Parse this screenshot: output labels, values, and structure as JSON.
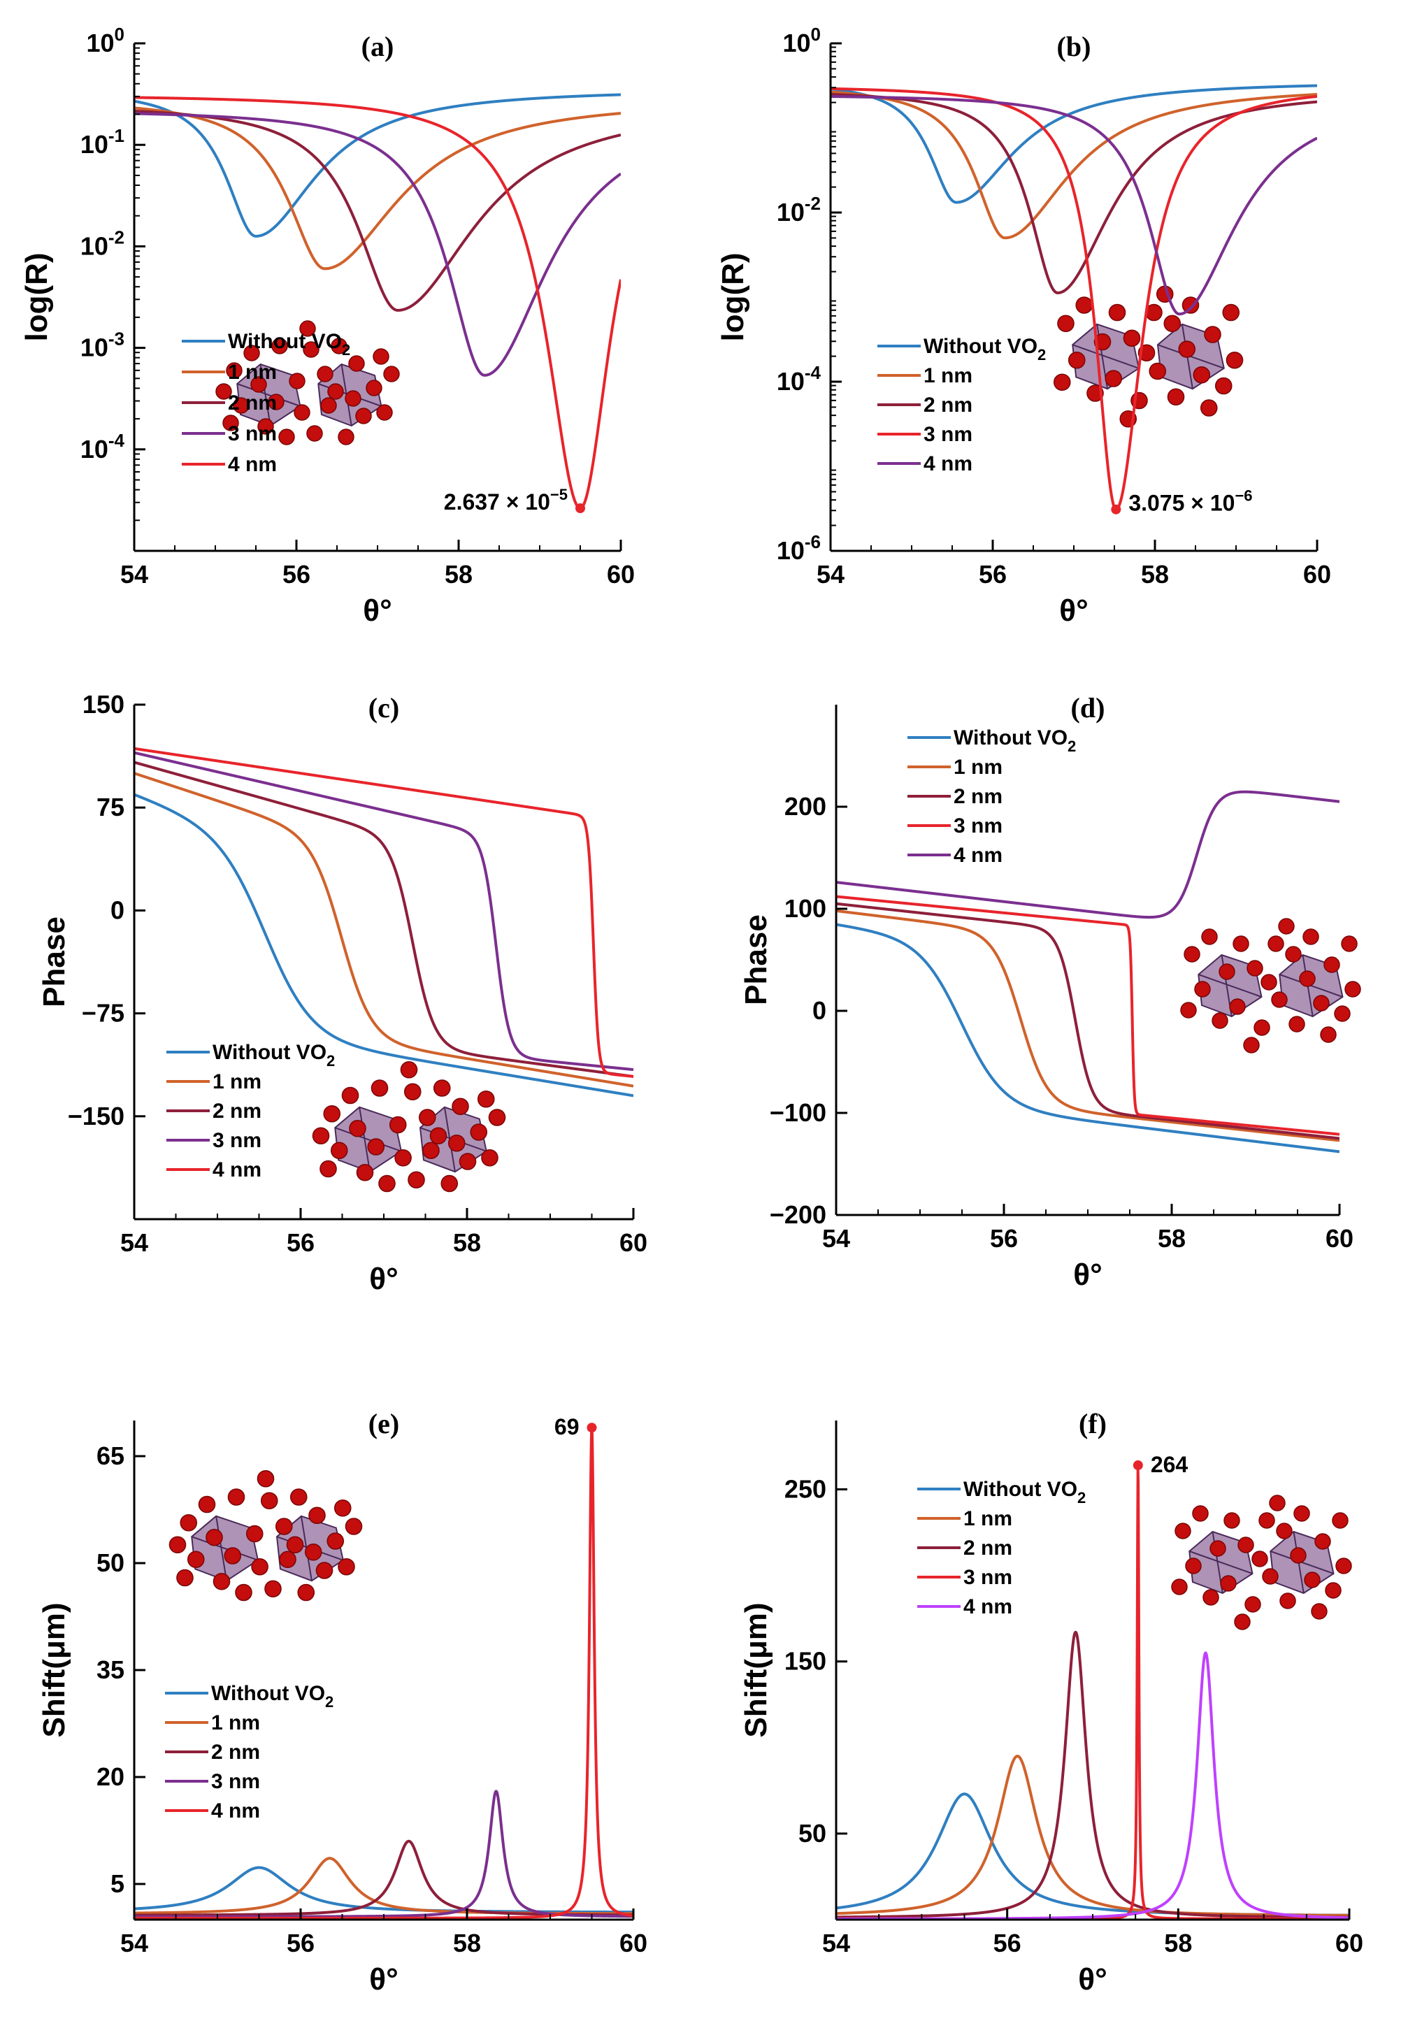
{
  "figure": {
    "colors": {
      "without": "#2f7fc1",
      "nm1": "#d0622b",
      "nm2": "#8e1f3a",
      "nm3_ab": "#7b2f8f",
      "nm4_ab": "#e8242b",
      "nm3_bdf": "#e8242b",
      "nm4_bdf": "#7b2f8f",
      "nm4_f": "#bf40ff",
      "molecule_atom": "#c40d0d",
      "molecule_body": "#6b3a7a"
    }
  },
  "chart_data": [
    {
      "id": "a",
      "type": "line",
      "title": "(a)",
      "xlabel": "θ°",
      "ylabel": "log(R)",
      "xlim": [
        54,
        60
      ],
      "yscale": "log",
      "ylim_log10": [
        -5,
        0
      ],
      "xticks": [
        "54",
        "56",
        "58",
        "60"
      ],
      "yticks": [
        {
          "exp": 0,
          "label": "10",
          "sup": "0"
        },
        {
          "exp": -1,
          "label": "10",
          "sup": "-1"
        },
        {
          "exp": -2,
          "label": "10",
          "sup": "-2"
        },
        {
          "exp": -3,
          "label": "10",
          "sup": "-3"
        },
        {
          "exp": -4,
          "label": "10",
          "sup": "-4"
        }
      ],
      "legend_position": "bottom-left",
      "series": [
        {
          "name": "Without VO",
          "sub": "2",
          "model": "dip",
          "x0": 55.5,
          "ymin_log": -1.9,
          "wl": 0.45,
          "wr": 0.9,
          "yinf": -0.45,
          "color_key": "without"
        },
        {
          "name": "1 nm",
          "sub": "",
          "model": "dip",
          "x0": 56.35,
          "ymin_log": -2.22,
          "wl": 0.55,
          "wr": 1.1,
          "yinf": -0.55,
          "color_key": "nm1"
        },
        {
          "name": "2 nm",
          "sub": "",
          "model": "dip",
          "x0": 57.25,
          "ymin_log": -2.63,
          "wl": 0.6,
          "wr": 1.15,
          "yinf": -0.6,
          "color_key": "nm2"
        },
        {
          "name": "3 nm",
          "sub": "",
          "model": "dip",
          "x0": 58.32,
          "ymin_log": -3.27,
          "wl": 0.55,
          "wr": 0.95,
          "yinf": -0.65,
          "color_key": "nm3_ab"
        },
        {
          "name": "4 nm",
          "sub": "",
          "model": "dip",
          "x0": 59.5,
          "ymin_log": -4.58,
          "wl": 0.5,
          "wr": 0.45,
          "yinf": -0.5,
          "color_key": "nm4_ab"
        }
      ],
      "annotation": {
        "x": 59.5,
        "y_log": -4.58,
        "mantissa": "2.637",
        "times": "×",
        "base": "10",
        "exp": "−5"
      }
    },
    {
      "id": "b",
      "type": "line",
      "title": "(b)",
      "xlabel": "θ°",
      "ylabel": "log(R)",
      "xlim": [
        54,
        60
      ],
      "yscale": "log",
      "ylim_log10": [
        -6,
        0
      ],
      "xticks": [
        "54",
        "56",
        "58",
        "60"
      ],
      "yticks": [
        {
          "exp": 0,
          "label": "10",
          "sup": "0"
        },
        {
          "exp": -2,
          "label": "10",
          "sup": "-2"
        },
        {
          "exp": -4,
          "label": "10",
          "sup": "-4"
        },
        {
          "exp": -6,
          "label": "10",
          "sup": "-6"
        }
      ],
      "legend_position": "bottom-left",
      "series": [
        {
          "name": "Without VO",
          "sub": "2",
          "model": "dip",
          "x0": 55.55,
          "ymin_log": -1.88,
          "wl": 0.4,
          "wr": 0.85,
          "yinf": -0.45,
          "color_key": "without"
        },
        {
          "name": "1 nm",
          "sub": "",
          "model": "dip",
          "x0": 56.15,
          "ymin_log": -2.3,
          "wl": 0.45,
          "wr": 0.95,
          "yinf": -0.5,
          "color_key": "nm1"
        },
        {
          "name": "2 nm",
          "sub": "",
          "model": "dip",
          "x0": 56.8,
          "ymin_log": -2.95,
          "wl": 0.42,
          "wr": 0.8,
          "yinf": -0.55,
          "color_key": "nm2"
        },
        {
          "name": "3 nm",
          "sub": "",
          "model": "dip",
          "x0": 57.52,
          "ymin_log": -5.51,
          "wl": 0.3,
          "wr": 0.4,
          "yinf": -0.5,
          "color_key": "nm3_bdf"
        },
        {
          "name": "4 nm",
          "sub": "",
          "model": "dip",
          "x0": 58.3,
          "ymin_log": -3.2,
          "wl": 0.45,
          "wr": 0.85,
          "yinf": -0.6,
          "color_key": "nm4_bdf"
        }
      ],
      "annotation": {
        "x": 57.52,
        "y_log": -5.51,
        "mantissa": "3.075",
        "times": "×",
        "base": "10",
        "exp": "−6"
      }
    },
    {
      "id": "c",
      "type": "line",
      "title": "(c)",
      "xlabel": "θ°",
      "ylabel": "Phase",
      "xlim": [
        54,
        60
      ],
      "yscale": "linear",
      "ylim": [
        -225,
        150
      ],
      "xticks": [
        "54",
        "56",
        "58",
        "60"
      ],
      "yticks": [
        {
          "v": 150,
          "label": "150"
        },
        {
          "v": 75,
          "label": "75"
        },
        {
          "v": 0,
          "label": "0"
        },
        {
          "v": -75,
          "label": "−75"
        },
        {
          "v": -150,
          "label": "−150"
        }
      ],
      "legend_position": "bottom-left",
      "series": [
        {
          "name": "Without VO",
          "sub": "2",
          "model": "phase",
          "x0": 55.6,
          "w": 0.28,
          "A": 85,
          "sA": 22,
          "B": -125,
          "sB": 10,
          "color_key": "without"
        },
        {
          "name": "1 nm",
          "sub": "",
          "model": "phase",
          "x0": 56.5,
          "w": 0.18,
          "A": 100,
          "sA": 20,
          "B": -118,
          "sB": 10,
          "color_key": "nm1"
        },
        {
          "name": "2 nm",
          "sub": "",
          "model": "phase",
          "x0": 57.35,
          "w": 0.13,
          "A": 108,
          "sA": 17,
          "B": -113,
          "sB": 8,
          "color_key": "nm2"
        },
        {
          "name": "3 nm",
          "sub": "",
          "model": "phase",
          "x0": 58.35,
          "w": 0.08,
          "A": 115,
          "sA": 14,
          "B": -110,
          "sB": 6,
          "color_key": "nm3_ab"
        },
        {
          "name": "4 nm",
          "sub": "",
          "model": "phase",
          "x0": 59.52,
          "w": 0.03,
          "A": 118,
          "sA": 9,
          "B": -115,
          "sB": 6,
          "color_key": "nm4_ab"
        }
      ]
    },
    {
      "id": "d",
      "type": "line",
      "title": "(d)",
      "xlabel": "θ°",
      "ylabel": "Phase",
      "xlim": [
        54,
        60
      ],
      "yscale": "linear",
      "ylim": [
        -200,
        300
      ],
      "xticks": [
        "54",
        "56",
        "58",
        "60"
      ],
      "yticks": [
        {
          "v": 200,
          "label": "200"
        },
        {
          "v": 100,
          "label": "100"
        },
        {
          "v": 0,
          "label": "0"
        },
        {
          "v": -100,
          "label": "−100"
        },
        {
          "v": -200,
          "label": "−200"
        }
      ],
      "legend_position": "top-left",
      "series": [
        {
          "name": "Without VO",
          "sub": "2",
          "model": "phase",
          "x0": 55.5,
          "w": 0.25,
          "A": 85,
          "sA": 12,
          "B": -128,
          "sB": 10,
          "color_key": "without"
        },
        {
          "name": "1 nm",
          "sub": "",
          "model": "phase",
          "x0": 56.2,
          "w": 0.16,
          "A": 98,
          "sA": 10,
          "B": -118,
          "sB": 9,
          "color_key": "nm1"
        },
        {
          "name": "2 nm",
          "sub": "",
          "model": "phase",
          "x0": 56.85,
          "w": 0.1,
          "A": 105,
          "sA": 9,
          "B": -116,
          "sB": 9,
          "color_key": "nm2"
        },
        {
          "name": "3 nm",
          "sub": "",
          "model": "phase",
          "x0": 57.53,
          "w": 0.012,
          "A": 112,
          "sA": 8,
          "B": -113,
          "sB": 8,
          "color_key": "nm3_bdf"
        },
        {
          "name": "4 nm",
          "sub": "",
          "model": "rise",
          "base": 126,
          "slope": -9.5,
          "x0": 58.3,
          "w": 0.12,
          "amp": 136,
          "color_key": "nm4_bdf"
        }
      ]
    },
    {
      "id": "e",
      "type": "line",
      "title": "(e)",
      "xlabel": "θ°",
      "ylabel": "Shift(μm)",
      "xlim": [
        54,
        60
      ],
      "yscale": "linear",
      "ylim": [
        0,
        70
      ],
      "xticks": [
        "54",
        "56",
        "58",
        "60"
      ],
      "yticks": [
        {
          "v": 65,
          "label": "65"
        },
        {
          "v": 50,
          "label": "50"
        },
        {
          "v": 35,
          "label": "35"
        },
        {
          "v": 20,
          "label": "20"
        },
        {
          "v": 5,
          "label": "5"
        }
      ],
      "legend_position": "middle-left",
      "series": [
        {
          "name": "Without VO",
          "sub": "2",
          "model": "peak",
          "x0": 55.5,
          "peak": 7.3,
          "w": 0.45,
          "base": 1,
          "color_key": "without"
        },
        {
          "name": "1 nm",
          "sub": "",
          "model": "peak",
          "x0": 56.35,
          "peak": 8.6,
          "w": 0.3,
          "base": 0.8,
          "color_key": "nm1"
        },
        {
          "name": "2 nm",
          "sub": "",
          "model": "peak",
          "x0": 57.3,
          "peak": 11,
          "w": 0.2,
          "base": 0.6,
          "color_key": "nm2"
        },
        {
          "name": "3 nm",
          "sub": "",
          "model": "peak",
          "x0": 58.35,
          "peak": 18,
          "w": 0.1,
          "base": 0.4,
          "color_key": "nm3_ab"
        },
        {
          "name": "4 nm",
          "sub": "",
          "model": "peak",
          "x0": 59.5,
          "peak": 69,
          "w": 0.035,
          "base": 0.2,
          "color_key": "nm4_ab"
        }
      ],
      "annotation": {
        "x": 59.5,
        "y": 69,
        "text": "69"
      }
    },
    {
      "id": "f",
      "type": "line",
      "title": "(f)",
      "xlabel": "θ°",
      "ylabel": "Shift(μm)",
      "xlim": [
        54,
        60
      ],
      "yscale": "linear",
      "ylim": [
        0,
        290
      ],
      "xticks": [
        "54",
        "56",
        "58",
        "60"
      ],
      "yticks": [
        {
          "v": 250,
          "label": "250"
        },
        {
          "v": 150,
          "label": "150"
        },
        {
          "v": 50,
          "label": "50"
        }
      ],
      "legend_position": "top-left",
      "series": [
        {
          "name": "Without VO",
          "sub": "2",
          "model": "peak",
          "x0": 55.5,
          "peak": 73,
          "w": 0.4,
          "base": 2,
          "color_key": "without"
        },
        {
          "name": "1 nm",
          "sub": "",
          "model": "peak",
          "x0": 56.12,
          "peak": 95,
          "w": 0.28,
          "base": 2,
          "color_key": "nm1"
        },
        {
          "name": "2 nm",
          "sub": "",
          "model": "peak",
          "x0": 56.8,
          "peak": 167,
          "w": 0.15,
          "base": 1,
          "color_key": "nm2"
        },
        {
          "name": "3 nm",
          "sub": "",
          "model": "peak",
          "x0": 57.53,
          "peak": 264,
          "w": 0.012,
          "base": 0.5,
          "color_key": "nm3_bdf"
        },
        {
          "name": "4 nm",
          "sub": "",
          "model": "peak",
          "x0": 58.32,
          "peak": 155,
          "w": 0.12,
          "base": 0.3,
          "color_key": "nm4_f"
        }
      ],
      "annotation": {
        "x": 57.53,
        "y": 264,
        "text": "264"
      }
    }
  ]
}
